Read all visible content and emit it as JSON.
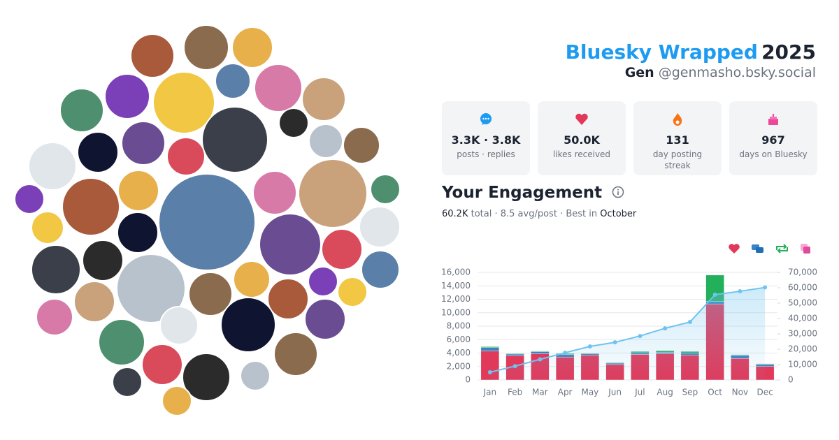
{
  "header": {
    "title": "Bluesky Wrapped",
    "year": "2025",
    "name": "Gen",
    "handle": "@genmasho.bsky.social"
  },
  "stats": [
    {
      "value": "3.3K · 3.8K",
      "label": "posts · replies"
    },
    {
      "value": "50.0K",
      "label": "likes received"
    },
    {
      "value": "131",
      "label": "day posting streak"
    },
    {
      "value": "967",
      "label": "days on Bluesky"
    }
  ],
  "engagement": {
    "title": "Your Engagement",
    "total": "60.2K",
    "middle": "total · 8.5 avg/post · Best in",
    "best": "October"
  },
  "chart_data": {
    "type": "stacked-bar-line",
    "categories": [
      "Jan",
      "Feb",
      "Mar",
      "Apr",
      "May",
      "Jun",
      "Jul",
      "Aug",
      "Sep",
      "Oct",
      "Nov",
      "Dec"
    ],
    "series": [
      {
        "color": "#e0395a",
        "values": [
          4300,
          3600,
          3900,
          3400,
          3700,
          2300,
          3800,
          3900,
          3700,
          11300,
          3200,
          2000
        ]
      },
      {
        "color": "#3b82c4",
        "values": [
          500,
          250,
          300,
          400,
          200,
          200,
          250,
          200,
          300,
          400,
          450,
          300
        ]
      },
      {
        "color": "#22b05a",
        "values": [
          150,
          100,
          100,
          150,
          100,
          100,
          200,
          250,
          250,
          3900,
          100,
          100
        ]
      },
      {
        "color": "#e24a9b",
        "values": [
          50,
          50,
          50,
          50,
          50,
          50,
          50,
          50,
          50,
          50,
          50,
          50
        ]
      },
      {
        "color": "#6fc3ee",
        "axis": "y2",
        "values": [
          5000,
          9000,
          13400,
          17700,
          21800,
          24500,
          28600,
          33600,
          37700,
          55500,
          57700,
          60200
        ]
      }
    ],
    "ylim": [
      0,
      16000
    ],
    "yticks": [
      0,
      {
        "value": 2000,
        "label": "2,000"
      },
      {
        "value": 4000,
        "label": "4,000"
      },
      {
        "value": 6000,
        "label": "6,000"
      },
      {
        "value": 8000,
        "label": "8,000"
      },
      {
        "value": 10000,
        "label": "10,000"
      },
      {
        "value": 12000,
        "label": "12,000"
      },
      {
        "value": 14000,
        "label": "14,000"
      },
      {
        "value": 16000,
        "label": "16,000"
      }
    ],
    "y2lim": [
      0,
      70000
    ],
    "y2ticks": [
      0,
      {
        "value": 10000,
        "label": "10,000"
      },
      {
        "value": 20000,
        "label": "20,000"
      },
      {
        "value": 30000,
        "label": "30,000"
      },
      {
        "value": 40000,
        "label": "40,000"
      },
      {
        "value": 50000,
        "label": "50,000"
      },
      {
        "value": 60000,
        "label": "60,000"
      },
      {
        "value": 70000,
        "label": "70,000"
      }
    ],
    "grid": true
  }
}
